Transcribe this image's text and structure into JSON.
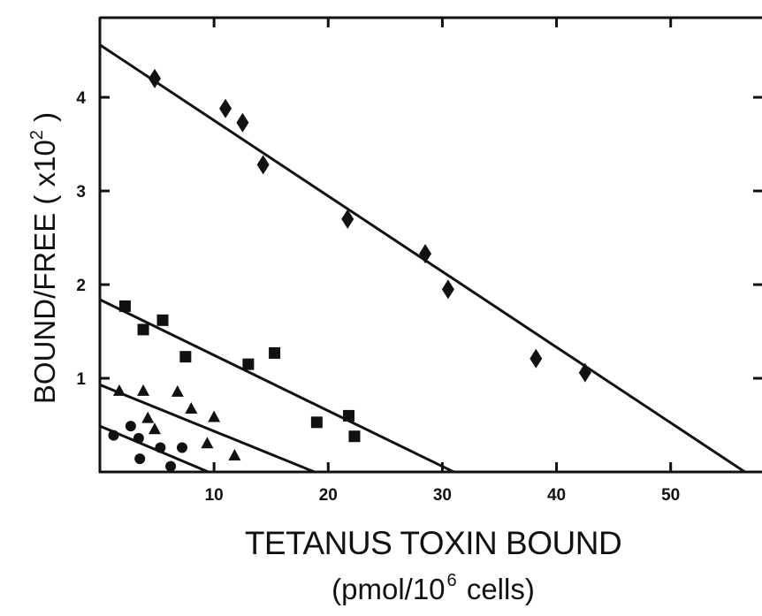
{
  "chart_data": {
    "type": "scatter",
    "title": "",
    "xlabel": "TETANUS TOXIN BOUND",
    "xlabel_units": {
      "prefix": "(pmol/10",
      "sup": "6",
      "suffix": " cells)"
    },
    "ylabel": {
      "prefix": "BOUND/FREE  ( x10",
      "sup": "2",
      "suffix": " )"
    },
    "xlim": [
      0,
      58
    ],
    "ylim": [
      0,
      4.85
    ],
    "x_ticks": [
      10,
      20,
      30,
      40,
      50
    ],
    "x_tick_labels": [
      "10",
      "20",
      "30",
      "40",
      "50"
    ],
    "y_ticks": [
      1,
      2,
      3,
      4
    ],
    "y_tick_labels": [
      "1",
      "2",
      "3",
      "4"
    ],
    "grid": false,
    "legend": "none",
    "series": [
      {
        "marker": "diamond",
        "points": [
          [
            4.8,
            4.2
          ],
          [
            11.0,
            3.88
          ],
          [
            12.5,
            3.73
          ],
          [
            14.3,
            3.28
          ],
          [
            21.7,
            2.7
          ],
          [
            28.5,
            2.33
          ],
          [
            30.5,
            1.95
          ],
          [
            38.2,
            1.21
          ],
          [
            42.5,
            1.06
          ]
        ],
        "fit_line": [
          [
            0,
            4.56
          ],
          [
            56.5,
            0
          ]
        ]
      },
      {
        "marker": "square",
        "points": [
          [
            2.2,
            1.77
          ],
          [
            3.8,
            1.52
          ],
          [
            5.5,
            1.62
          ],
          [
            7.5,
            1.23
          ],
          [
            13.0,
            1.15
          ],
          [
            15.3,
            1.27
          ],
          [
            19.0,
            0.53
          ],
          [
            21.8,
            0.6
          ],
          [
            22.3,
            0.38
          ]
        ],
        "fit_line": [
          [
            0,
            1.84
          ],
          [
            31,
            0
          ]
        ]
      },
      {
        "marker": "triangle",
        "points": [
          [
            1.7,
            0.86
          ],
          [
            3.8,
            0.86
          ],
          [
            4.2,
            0.57
          ],
          [
            4.8,
            0.45
          ],
          [
            6.8,
            0.85
          ],
          [
            8.0,
            0.67
          ],
          [
            9.4,
            0.3
          ],
          [
            10.0,
            0.58
          ],
          [
            11.8,
            0.17
          ]
        ],
        "fit_line": [
          [
            0,
            0.93
          ],
          [
            18.8,
            0
          ]
        ]
      },
      {
        "marker": "circle",
        "points": [
          [
            1.2,
            0.39
          ],
          [
            2.7,
            0.49
          ],
          [
            3.4,
            0.36
          ],
          [
            3.5,
            0.14
          ],
          [
            5.3,
            0.26
          ],
          [
            6.2,
            0.06
          ],
          [
            7.2,
            0.26
          ]
        ],
        "fit_line": [
          [
            0,
            0.49
          ],
          [
            9.5,
            0
          ]
        ]
      }
    ]
  }
}
